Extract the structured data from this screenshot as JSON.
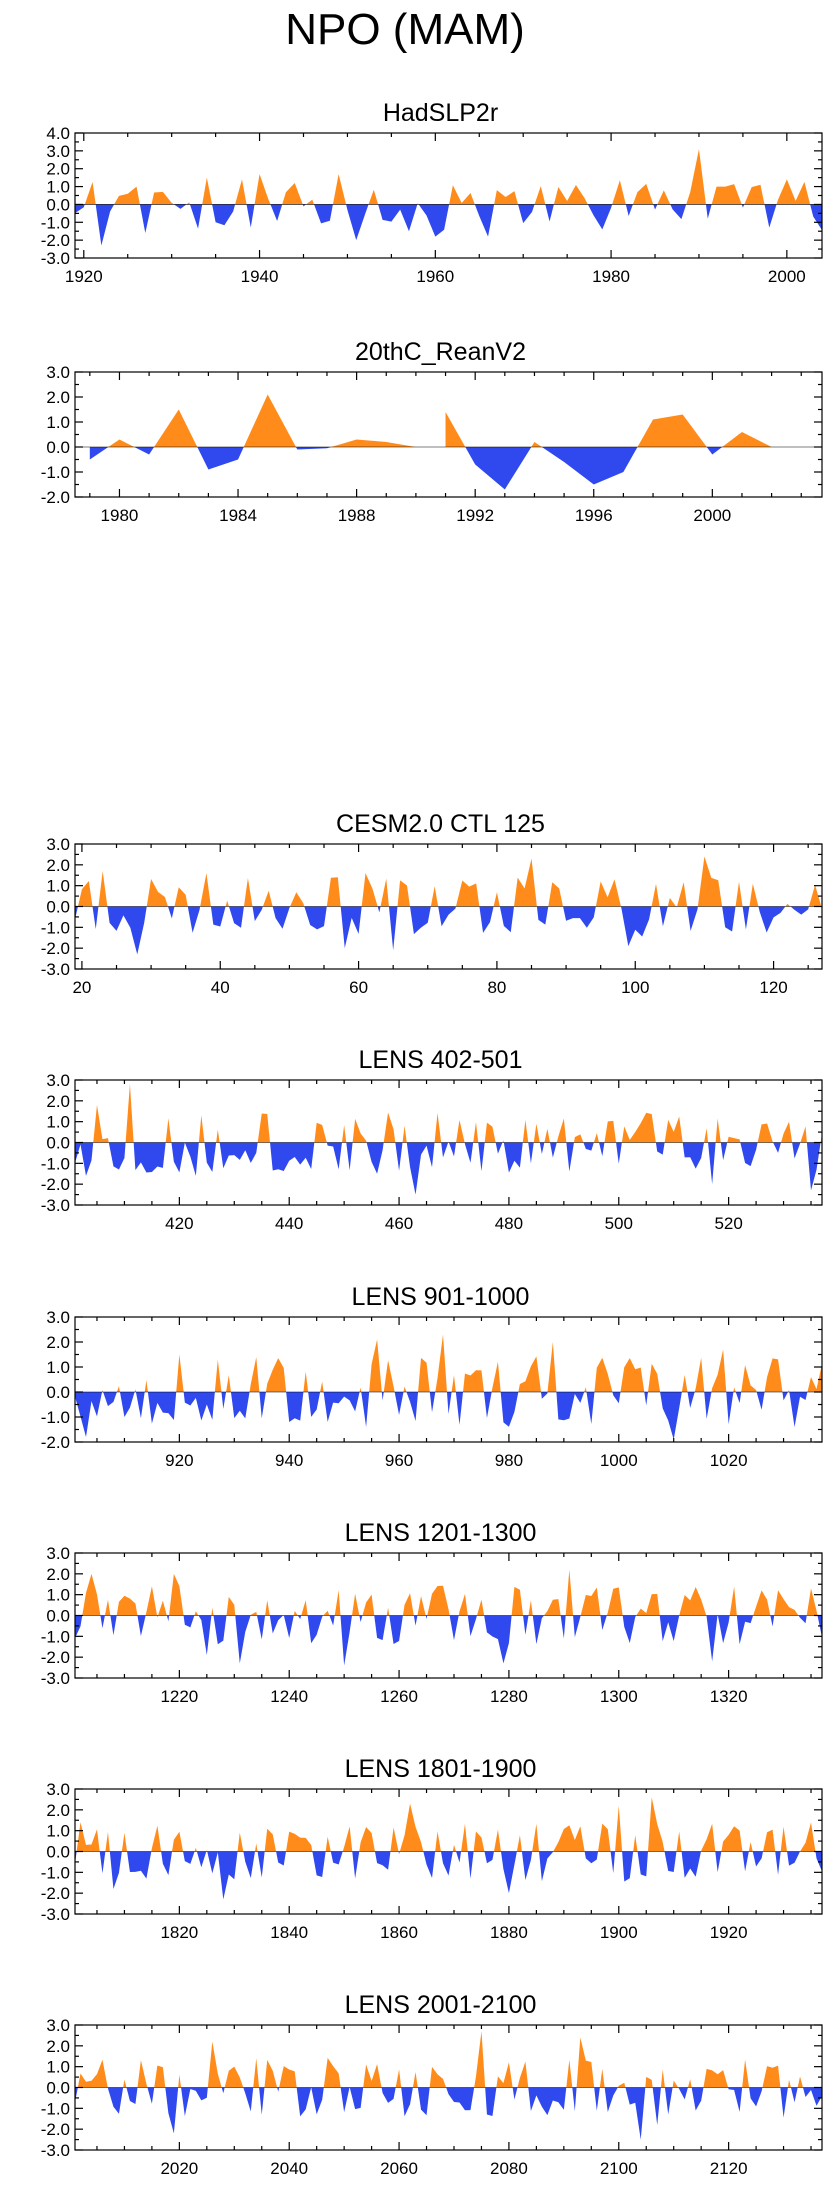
{
  "figure": {
    "title": "NPO (MAM)",
    "colors": {
      "positive": "#ff8c1a",
      "negative": "#2f49ee",
      "axis": "#000000"
    }
  },
  "chart_data": [
    {
      "type": "area",
      "title": "HadSLP2r",
      "xlim": [
        1919,
        2004
      ],
      "ylim": [
        -3,
        4
      ],
      "yticks": [
        "4.0",
        "3.0",
        "2.0",
        "1.0",
        "0.0",
        "-1.0",
        "-2.0",
        "-3.0"
      ],
      "xticks": [
        1920,
        1940,
        1960,
        1980,
        2000
      ],
      "seed": 11,
      "anchors": [
        [
          1922,
          -2.3
        ],
        [
          1925,
          0.6
        ],
        [
          1927,
          -1.6
        ],
        [
          1929,
          0.7
        ],
        [
          1934,
          1.5
        ],
        [
          1935,
          -1.0
        ],
        [
          1938,
          1.4
        ],
        [
          1940,
          1.7
        ],
        [
          1944,
          1.2
        ],
        [
          1949,
          1.7
        ],
        [
          1951,
          -2.0
        ],
        [
          1957,
          -1.5
        ],
        [
          1960,
          -1.8
        ],
        [
          1967,
          0.8
        ],
        [
          1966,
          -1.8
        ],
        [
          1979,
          -1.4
        ],
        [
          1990,
          3.1
        ],
        [
          1992,
          1.0
        ],
        [
          1993,
          1.0
        ],
        [
          1997,
          1.1
        ],
        [
          1998,
          -1.3
        ]
      ],
      "points": []
    },
    {
      "type": "area",
      "title": "20thC_ReanV2",
      "xlim": [
        1978.5,
        2003.7
      ],
      "ylim": [
        -2,
        3
      ],
      "yticks": [
        "3.0",
        "2.0",
        "1.0",
        "0.0",
        "-1.0",
        "-2.0"
      ],
      "xticks": [
        1980,
        1984,
        1988,
        1992,
        1996,
        2000
      ],
      "seed": 0,
      "anchors": [],
      "points": [
        [
          1979,
          -0.5
        ],
        [
          1980,
          0.3
        ],
        [
          1981,
          -0.3
        ],
        [
          1982,
          1.5
        ],
        [
          1983,
          -0.9
        ],
        [
          1984,
          -0.5
        ],
        [
          1985,
          2.1
        ],
        [
          1986,
          -0.1
        ],
        [
          1987,
          -0.05
        ],
        [
          1988,
          0.3
        ],
        [
          1989,
          0.2
        ],
        [
          1990,
          0.0
        ],
        [
          1991,
          1.4
        ],
        [
          1992,
          -0.7
        ],
        [
          1993,
          -1.7
        ],
        [
          1994,
          0.2
        ],
        [
          1995,
          -0.6
        ],
        [
          1996,
          -1.5
        ],
        [
          1997,
          -1.0
        ],
        [
          1998,
          1.1
        ],
        [
          1999,
          1.3
        ],
        [
          2000,
          -0.3
        ],
        [
          2001,
          0.6
        ],
        [
          2002,
          0.0
        ]
      ]
    },
    {
      "type": "area",
      "title": "CESM2.0 CTL 125",
      "xlim": [
        19,
        127
      ],
      "ylim": [
        -3,
        3
      ],
      "yticks": [
        "3.0",
        "2.0",
        "1.0",
        "0.0",
        "-1.0",
        "-2.0",
        "-3.0"
      ],
      "xticks": [
        20,
        40,
        60,
        80,
        100,
        120
      ],
      "seed": 23,
      "anchors": [
        [
          23,
          1.7
        ],
        [
          28,
          -2.3
        ],
        [
          38,
          1.6
        ],
        [
          58,
          -2.0
        ],
        [
          61,
          1.6
        ],
        [
          65,
          -2.1
        ],
        [
          85,
          2.3
        ],
        [
          99,
          -1.9
        ],
        [
          110,
          2.4
        ]
      ],
      "points": []
    },
    {
      "type": "area",
      "title": "LENS 402-501",
      "xlim": [
        401,
        537
      ],
      "ylim": [
        -3,
        3
      ],
      "yticks": [
        "3.0",
        "2.0",
        "1.0",
        "0.0",
        "-1.0",
        "-2.0",
        "-3.0"
      ],
      "xticks": [
        420,
        440,
        460,
        480,
        500,
        520
      ],
      "seed": 37,
      "anchors": [
        [
          403,
          -1.6
        ],
        [
          405,
          1.8
        ],
        [
          411,
          2.8
        ],
        [
          423,
          -1.6
        ],
        [
          456,
          -1.5
        ],
        [
          463,
          -2.5
        ],
        [
          517,
          -2.0
        ],
        [
          535,
          -2.3
        ]
      ],
      "points": []
    },
    {
      "type": "area",
      "title": "LENS 901-1000",
      "xlim": [
        901,
        1037
      ],
      "ylim": [
        -2,
        3
      ],
      "yticks": [
        "3.0",
        "2.0",
        "1.0",
        "0.0",
        "-1.0",
        "-2.0"
      ],
      "xticks": [
        920,
        940,
        960,
        980,
        1000,
        1020
      ],
      "seed": 53,
      "anchors": [
        [
          903,
          -1.8
        ],
        [
          920,
          1.5
        ],
        [
          956,
          2.1
        ],
        [
          968,
          2.3
        ],
        [
          988,
          2.0
        ],
        [
          1010,
          -1.9
        ],
        [
          1019,
          1.7
        ]
      ],
      "points": []
    },
    {
      "type": "area",
      "title": "LENS 1201-1300",
      "xlim": [
        1201,
        1337
      ],
      "ylim": [
        -3,
        3
      ],
      "yticks": [
        "3.0",
        "2.0",
        "1.0",
        "0.0",
        "-1.0",
        "-2.0",
        "-3.0"
      ],
      "xticks": [
        1220,
        1240,
        1260,
        1280,
        1300,
        1320
      ],
      "seed": 71,
      "anchors": [
        [
          1204,
          2.0
        ],
        [
          1219,
          2.0
        ],
        [
          1225,
          -1.9
        ],
        [
          1231,
          -2.3
        ],
        [
          1250,
          -2.4
        ],
        [
          1279,
          -2.3
        ],
        [
          1291,
          2.2
        ],
        [
          1317,
          -2.2
        ],
        [
          1335,
          1.3
        ]
      ],
      "points": []
    },
    {
      "type": "area",
      "title": "LENS 1801-1900",
      "xlim": [
        1801,
        1937
      ],
      "ylim": [
        -3,
        3
      ],
      "yticks": [
        "3.0",
        "2.0",
        "1.0",
        "0.0",
        "-1.0",
        "-2.0",
        "-3.0"
      ],
      "xticks": [
        1820,
        1840,
        1860,
        1880,
        1900,
        1920
      ],
      "seed": 89,
      "anchors": [
        [
          1808,
          -1.8
        ],
        [
          1828,
          -2.3
        ],
        [
          1862,
          2.3
        ],
        [
          1880,
          -2.0
        ],
        [
          1900,
          2.2
        ],
        [
          1906,
          2.6
        ],
        [
          1935,
          1.4
        ]
      ],
      "points": []
    },
    {
      "type": "area",
      "title": "LENS 2001-2100",
      "xlim": [
        2001,
        2137
      ],
      "ylim": [
        -3,
        3
      ],
      "yticks": [
        "3.0",
        "2.0",
        "1.0",
        "0.0",
        "-1.0",
        "-2.0",
        "-3.0"
      ],
      "xticks": [
        2020,
        2040,
        2060,
        2080,
        2100,
        2120
      ],
      "seed": 101,
      "anchors": [
        [
          2019,
          -2.2
        ],
        [
          2026,
          2.2
        ],
        [
          2075,
          2.7
        ],
        [
          2093,
          2.4
        ],
        [
          2104,
          -2.5
        ],
        [
          2107,
          -1.8
        ]
      ],
      "points": []
    }
  ]
}
